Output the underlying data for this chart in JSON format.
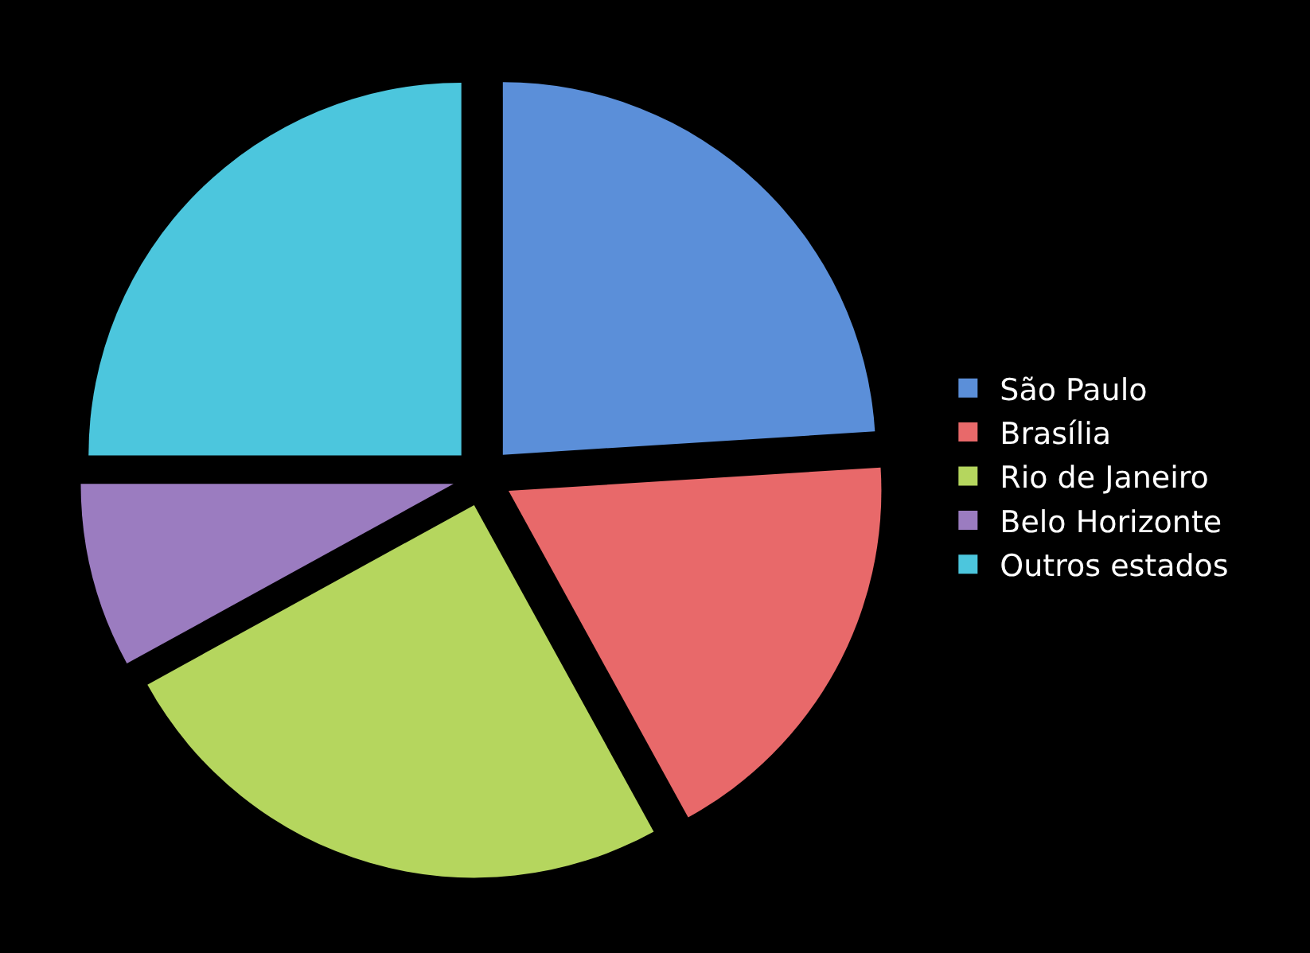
{
  "chart_data": {
    "type": "pie",
    "categories": [
      "São Paulo",
      "Brasília",
      "Rio de Janeiro",
      "Belo Horizonte",
      "Outros estados"
    ],
    "values": [
      24,
      18,
      25,
      8,
      25
    ],
    "colors": [
      "#5b8fd9",
      "#e8696a",
      "#b5d65e",
      "#9b7cc0",
      "#4cc6dd"
    ],
    "legend": "right"
  }
}
